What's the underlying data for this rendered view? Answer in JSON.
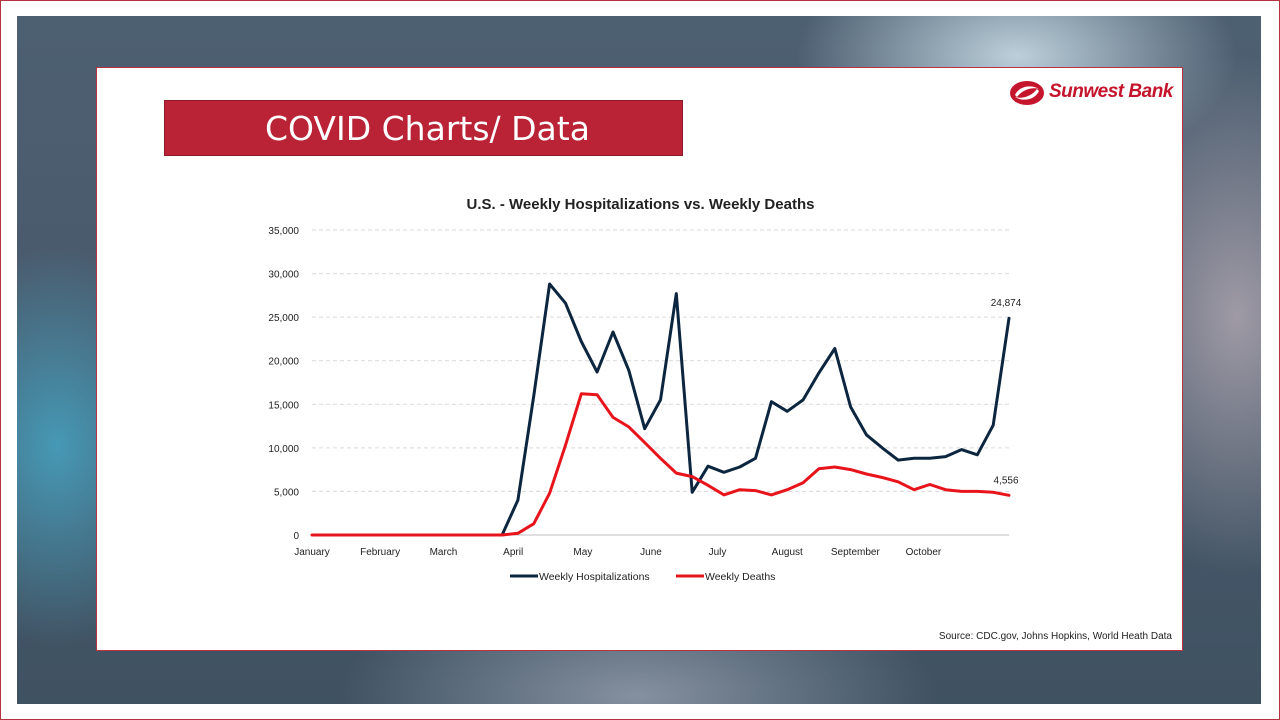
{
  "slide": {
    "title": "COVID Charts/ Data",
    "logo_text": "Sunwest Bank",
    "source": "Source: CDC.gov, Johns Hopkins, World Heath Data"
  },
  "colors": {
    "accent": "#ba2236",
    "hospitalizations": "#0d2640",
    "deaths": "#e8141c"
  },
  "chart_data": {
    "type": "line",
    "title": "U.S. - Weekly Hospitalizations vs. Weekly Deaths",
    "xlabel": "",
    "ylabel": "",
    "ylim": [
      0,
      35000
    ],
    "yticks": [
      0,
      5000,
      10000,
      15000,
      20000,
      25000,
      30000,
      35000
    ],
    "ytick_labels": [
      "0",
      "5,000",
      "10,000",
      "15,000",
      "20,000",
      "25,000",
      "30,000",
      "35,000"
    ],
    "x_month_labels": [
      "January",
      "February",
      "March",
      "April",
      "May",
      "June",
      "July",
      "August",
      "September",
      "October"
    ],
    "grid": "horizontal dashed",
    "legend_position": "bottom",
    "series": [
      {
        "name": "Weekly Hospitalizations",
        "color": "#0d2640",
        "values": [
          0,
          0,
          0,
          0,
          0,
          0,
          0,
          0,
          0,
          0,
          0,
          4000,
          16000,
          28800,
          26600,
          22200,
          18700,
          23300,
          18900,
          12200,
          15500,
          27700,
          4900,
          7900,
          7200,
          7800,
          8800,
          15300,
          14200,
          15500,
          18600,
          21400,
          14700,
          11500,
          10000,
          8600,
          8800,
          8800,
          9000,
          9800,
          9200,
          12600,
          24874
        ],
        "end_label": "24,874"
      },
      {
        "name": "Weekly Deaths",
        "color": "#e8141c",
        "values": [
          0,
          0,
          0,
          0,
          0,
          0,
          0,
          0,
          0,
          0,
          0,
          0,
          0,
          200,
          1300,
          4800,
          10300,
          16200,
          16100,
          13500,
          12400,
          10600,
          8800,
          7100,
          6700,
          5700,
          4600,
          5200,
          5100,
          4600,
          5200,
          6000,
          7600,
          7800,
          7500,
          7000,
          6600,
          6100,
          5200,
          5800,
          5200,
          5000,
          5000,
          4900,
          4556
        ],
        "end_label": "4,556"
      }
    ]
  }
}
